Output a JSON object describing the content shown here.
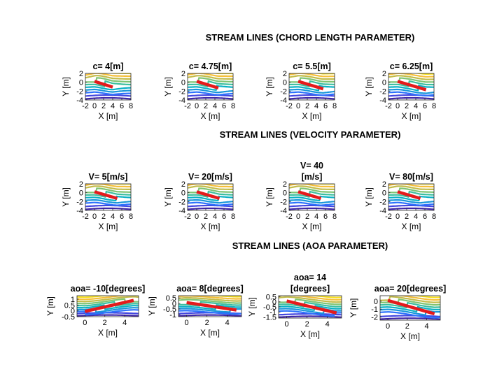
{
  "rows": [
    {
      "title": "STREAM LINES (CHORD LENGTH PARAMETER)",
      "panels": [
        {
          "title_lines": [
            "c= 4[m]"
          ],
          "xlabel": "X [m]",
          "ylabel": "Y [m]",
          "xlim": [
            -2,
            8
          ],
          "ylim": [
            -4,
            2
          ],
          "xticks": [
            "-2",
            "0",
            "2",
            "4",
            "6",
            "8"
          ],
          "yticks": [
            "2",
            "0",
            "-2",
            "-4"
          ],
          "plate": {
            "x": [
              0,
              4
            ],
            "y": [
              0.2,
              -1.1
            ]
          }
        },
        {
          "title_lines": [
            "c= 4.75[m]"
          ],
          "xlabel": "X [m]",
          "ylabel": "Y [m]",
          "xlim": [
            -2,
            8
          ],
          "ylim": [
            -4,
            2
          ],
          "xticks": [
            "-2",
            "0",
            "2",
            "4",
            "6",
            "8"
          ],
          "yticks": [
            "2",
            "0",
            "-2",
            "-4"
          ],
          "plate": {
            "x": [
              0,
              4.75
            ],
            "y": [
              0.2,
              -1.3
            ]
          }
        },
        {
          "title_lines": [
            "c= 5.5[m]"
          ],
          "xlabel": "X [m]",
          "ylabel": "Y [m]",
          "xlim": [
            -2,
            8
          ],
          "ylim": [
            -4,
            2
          ],
          "xticks": [
            "-2",
            "0",
            "2",
            "4",
            "6",
            "8"
          ],
          "yticks": [
            "2",
            "0",
            "-2",
            "-4"
          ],
          "plate": {
            "x": [
              0,
              5.5
            ],
            "y": [
              0.2,
              -1.5
            ]
          }
        },
        {
          "title_lines": [
            "c= 6.25[m]"
          ],
          "xlabel": "X [m]",
          "ylabel": "Y [m]",
          "xlim": [
            -2,
            8
          ],
          "ylim": [
            -4,
            2
          ],
          "xticks": [
            "-2",
            "0",
            "2",
            "4",
            "6",
            "8"
          ],
          "yticks": [
            "2",
            "0",
            "-2",
            "-4"
          ],
          "plate": {
            "x": [
              0,
              6.25
            ],
            "y": [
              0.2,
              -1.7
            ]
          }
        }
      ]
    },
    {
      "title": "STREAM LINES (VELOCITY PARAMETER)",
      "panels": [
        {
          "title_lines": [
            "V= 5[m/s]"
          ],
          "xlabel": "X [m]",
          "ylabel": "Y [m]",
          "xlim": [
            -2,
            8
          ],
          "ylim": [
            -4,
            2
          ],
          "xticks": [
            "-2",
            "0",
            "2",
            "4",
            "6",
            "8"
          ],
          "yticks": [
            "2",
            "0",
            "-2",
            "-4"
          ],
          "plate": {
            "x": [
              0,
              5
            ],
            "y": [
              0.2,
              -1.3
            ]
          }
        },
        {
          "title_lines": [
            "V= 20[m/s]"
          ],
          "xlabel": "X [m]",
          "ylabel": "Y [m]",
          "xlim": [
            -2,
            8
          ],
          "ylim": [
            -4,
            2
          ],
          "xticks": [
            "-2",
            "0",
            "2",
            "4",
            "6",
            "8"
          ],
          "yticks": [
            "2",
            "0",
            "-2",
            "-4"
          ],
          "plate": {
            "x": [
              0,
              5
            ],
            "y": [
              0.2,
              -1.3
            ]
          }
        },
        {
          "title_lines": [
            "V= 40",
            "[m/s]"
          ],
          "xlabel": "X [m]",
          "ylabel": "Y [m]",
          "xlim": [
            -2,
            8
          ],
          "ylim": [
            -4,
            2
          ],
          "xticks": [
            "-2",
            "0",
            "2",
            "4",
            "6",
            "8"
          ],
          "yticks": [
            "2",
            "0",
            "-2",
            "-4"
          ],
          "plate": {
            "x": [
              0,
              5
            ],
            "y": [
              0.2,
              -1.3
            ]
          }
        },
        {
          "title_lines": [
            "V= 80[m/s]"
          ],
          "xlabel": "X [m]",
          "ylabel": "Y [m]",
          "xlim": [
            -2,
            8
          ],
          "ylim": [
            -4,
            2
          ],
          "xticks": [
            "-2",
            "0",
            "2",
            "4",
            "6",
            "8"
          ],
          "yticks": [
            "2",
            "0",
            "-2",
            "-4"
          ],
          "plate": {
            "x": [
              0,
              5
            ],
            "y": [
              0.2,
              -1.3
            ]
          }
        }
      ]
    },
    {
      "title": "STREAM LINES (AOA PARAMETER)",
      "panels": [
        {
          "title_lines": [
            "aoa= -10[degrees]"
          ],
          "xlabel": "X [m]",
          "ylabel": "Y [m]",
          "xlim": [
            -0.8,
            5.4
          ],
          "ylim": [
            -0.5,
            1.3
          ],
          "xticks": [
            "0",
            "2",
            "4"
          ],
          "yticks": [
            "1",
            "0.5",
            "0",
            "-0.5"
          ],
          "plate": {
            "x": [
              0,
              4.9
            ],
            "y": [
              -0.05,
              0.9
            ]
          }
        },
        {
          "title_lines": [
            "aoa= 8[degrees]"
          ],
          "xlabel": "X [m]",
          "ylabel": "Y [m]",
          "xlim": [
            -0.8,
            5.4
          ],
          "ylim": [
            -1.2,
            0.7
          ],
          "xticks": [
            "0",
            "2",
            "4"
          ],
          "yticks": [
            "0.5",
            "0",
            "-0.5",
            "-1"
          ],
          "plate": {
            "x": [
              0,
              4.9
            ],
            "y": [
              0.08,
              -0.6
            ]
          }
        },
        {
          "title_lines": [
            "aoa= 14",
            "[degrees]"
          ],
          "xlabel": "X [m]",
          "ylabel": "Y [m]",
          "xlim": [
            -0.8,
            5.4
          ],
          "ylim": [
            -1.6,
            0.6
          ],
          "xticks": [
            "0",
            "2",
            "4"
          ],
          "yticks": [
            "0.5",
            "0",
            "-0.5",
            "-1",
            "-1.5"
          ],
          "plate": {
            "x": [
              0,
              4.9
            ],
            "y": [
              0.08,
              -1.1
            ]
          }
        },
        {
          "title_lines": [
            "aoa= 20[degrees]"
          ],
          "xlabel": "X [m]",
          "ylabel": "Y [m]",
          "xlim": [
            -0.8,
            5.4
          ],
          "ylim": [
            -2.4,
            0.7
          ],
          "xticks": [
            "0",
            "2",
            "4"
          ],
          "yticks": [
            "0",
            "-1",
            "-2"
          ],
          "plate": {
            "x": [
              0,
              4.8
            ],
            "y": [
              0.1,
              -1.6
            ]
          }
        }
      ]
    }
  ],
  "colors": {
    "streamlines": [
      "#3e26a8",
      "#4347e0",
      "#2c72fc",
      "#1896da",
      "#0ab1c4",
      "#3cbf9f",
      "#7fc473",
      "#c2bc4a",
      "#f5bf39",
      "#f9e11e"
    ],
    "plate": "#e41a1c",
    "axes": "#262626"
  }
}
